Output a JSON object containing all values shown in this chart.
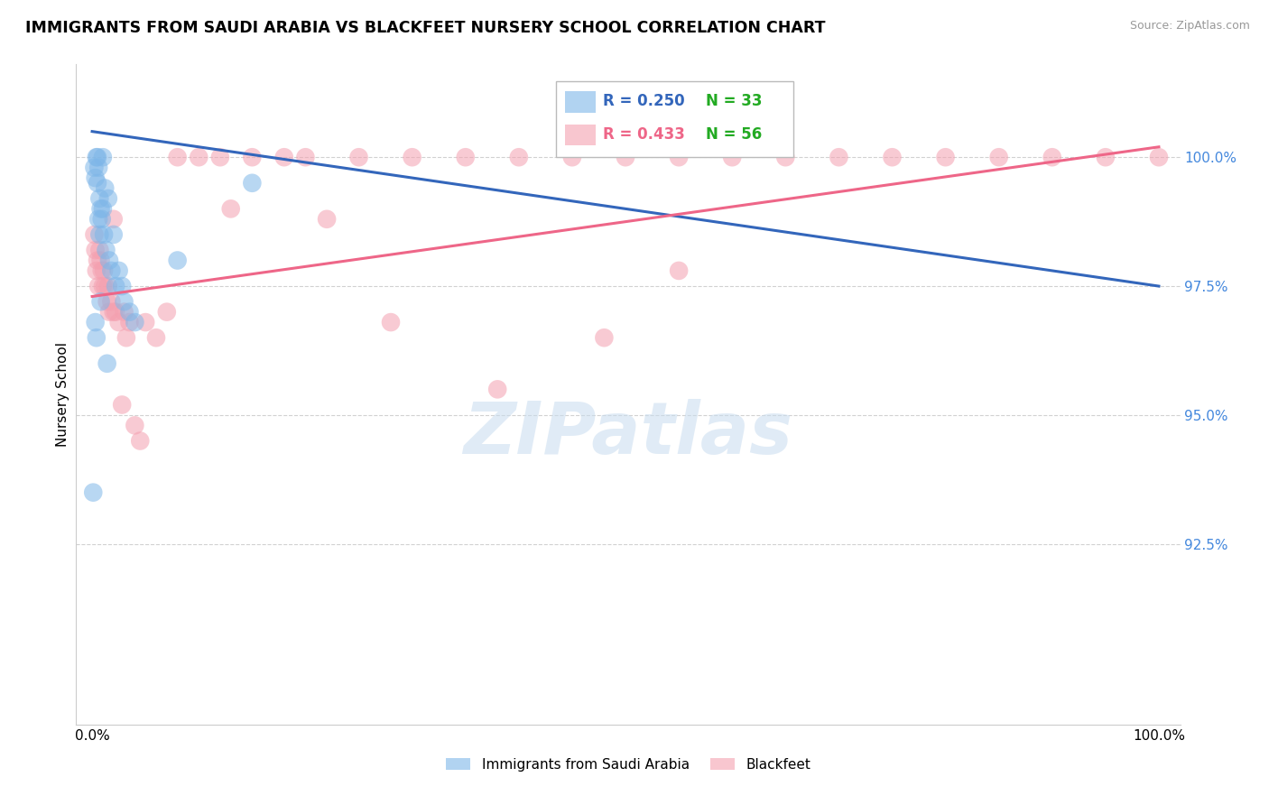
{
  "title": "IMMIGRANTS FROM SAUDI ARABIA VS BLACKFEET NURSERY SCHOOL CORRELATION CHART",
  "source": "Source: ZipAtlas.com",
  "ylabel": "Nursery School",
  "watermark": "ZIPatlas",
  "legend_blue_r": "R = 0.250",
  "legend_blue_n": "N = 33",
  "legend_pink_r": "R = 0.433",
  "legend_pink_n": "N = 56",
  "legend_label_blue": "Immigrants from Saudi Arabia",
  "legend_label_pink": "Blackfeet",
  "blue_color": "#7EB6E8",
  "pink_color": "#F4A0B0",
  "blue_line_color": "#3366BB",
  "pink_line_color": "#EE6688",
  "r_n_color": "#3366BB",
  "n_value_color": "#22AA22",
  "ytick_color": "#4488DD",
  "yticks": [
    92.5,
    95.0,
    97.5,
    100.0
  ],
  "ylim": [
    89.0,
    101.8
  ],
  "xlim": [
    -1.5,
    102
  ],
  "blue_scatter_x": [
    0.2,
    0.3,
    0.4,
    0.5,
    0.5,
    0.6,
    0.6,
    0.7,
    0.7,
    0.8,
    0.9,
    1.0,
    1.0,
    1.1,
    1.2,
    1.3,
    1.5,
    1.6,
    1.8,
    2.0,
    2.2,
    2.5,
    2.8,
    3.0,
    3.5,
    4.0,
    0.3,
    8.0,
    15.0,
    0.4,
    0.8,
    1.4,
    0.1
  ],
  "blue_scatter_y": [
    99.8,
    99.6,
    100.0,
    100.0,
    99.5,
    99.8,
    98.8,
    99.2,
    98.5,
    99.0,
    98.8,
    100.0,
    99.0,
    98.5,
    99.4,
    98.2,
    99.2,
    98.0,
    97.8,
    98.5,
    97.5,
    97.8,
    97.5,
    97.2,
    97.0,
    96.8,
    96.8,
    98.0,
    99.5,
    96.5,
    97.2,
    96.0,
    93.5
  ],
  "pink_scatter_x": [
    0.2,
    0.3,
    0.4,
    0.5,
    0.6,
    0.7,
    0.8,
    0.9,
    1.0,
    1.1,
    1.2,
    1.4,
    1.5,
    1.6,
    1.8,
    2.0,
    2.0,
    2.2,
    2.5,
    2.8,
    3.0,
    3.2,
    3.5,
    4.0,
    4.5,
    5.0,
    6.0,
    7.0,
    8.0,
    10.0,
    12.0,
    13.0,
    15.0,
    18.0,
    20.0,
    22.0,
    25.0,
    28.0,
    30.0,
    35.0,
    38.0,
    40.0,
    45.0,
    48.0,
    50.0,
    55.0,
    55.0,
    60.0,
    65.0,
    70.0,
    75.0,
    80.0,
    85.0,
    90.0,
    95.0,
    100.0
  ],
  "pink_scatter_y": [
    98.5,
    98.2,
    97.8,
    98.0,
    97.5,
    98.2,
    98.0,
    97.8,
    97.5,
    97.8,
    97.5,
    97.2,
    97.5,
    97.0,
    97.2,
    97.0,
    98.8,
    97.0,
    96.8,
    95.2,
    97.0,
    96.5,
    96.8,
    94.8,
    94.5,
    96.8,
    96.5,
    97.0,
    100.0,
    100.0,
    100.0,
    99.0,
    100.0,
    100.0,
    100.0,
    98.8,
    100.0,
    96.8,
    100.0,
    100.0,
    95.5,
    100.0,
    100.0,
    96.5,
    100.0,
    97.8,
    100.0,
    100.0,
    100.0,
    100.0,
    100.0,
    100.0,
    100.0,
    100.0,
    100.0,
    100.0
  ],
  "blue_trend_x0": 0,
  "blue_trend_x1": 100,
  "blue_trend_y0": 100.5,
  "blue_trend_y1": 97.5,
  "pink_trend_x0": 0,
  "pink_trend_x1": 100,
  "pink_trend_y0": 97.3,
  "pink_trend_y1": 100.2
}
